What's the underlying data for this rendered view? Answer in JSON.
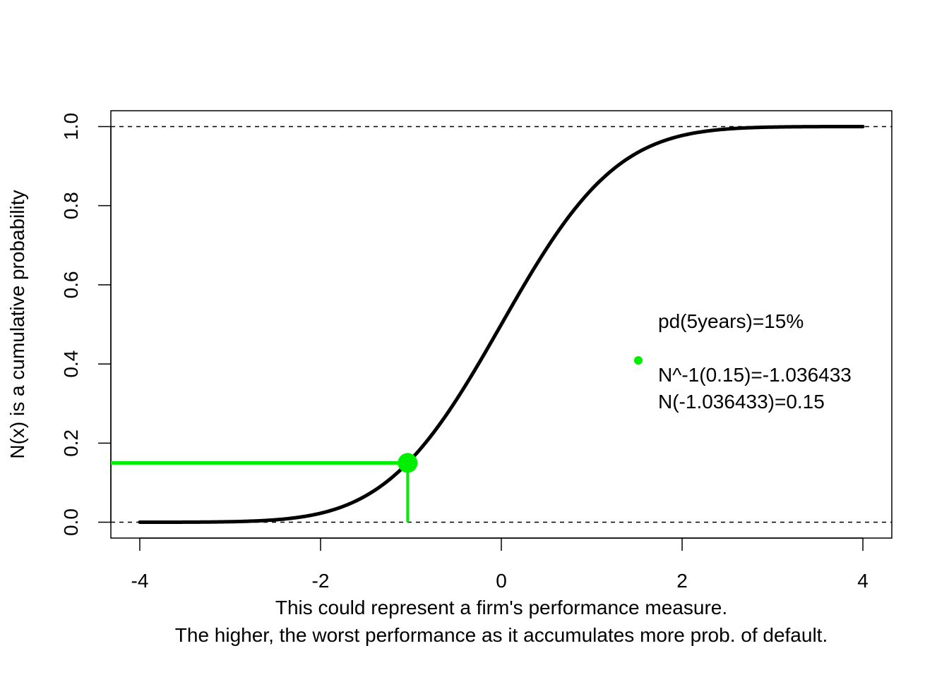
{
  "chart_data": {
    "type": "line",
    "title": "",
    "xlabel_lines": [
      "This could represent a firm's performance measure.",
      "The higher, the worst performance as it accumulates more prob. of default."
    ],
    "ylabel": "N(x) is a cumulative probability",
    "xlim": [
      -4.32,
      4.32
    ],
    "ylim": [
      -0.04,
      1.04
    ],
    "x_ticks": [
      -4,
      -2,
      0,
      2,
      4
    ],
    "x_tick_labels": [
      "-4",
      "-2",
      "0",
      "2",
      "4"
    ],
    "y_ticks": [
      0,
      0.2,
      0.4,
      0.6,
      0.8,
      1
    ],
    "y_tick_labels": [
      "0.0",
      "0.2",
      "0.4",
      "0.6",
      "0.8",
      "1.0"
    ],
    "series": [
      {
        "name": "N(x)",
        "function": "standard normal CDF",
        "x_range": [
          -4,
          4
        ],
        "color": "#000000"
      }
    ],
    "reference_lines": [
      {
        "y": 0,
        "style": "dashed",
        "color": "#000000"
      },
      {
        "y": 1,
        "style": "dashed",
        "color": "#000000"
      }
    ],
    "highlight": {
      "x": -1.036433,
      "y": 0.15,
      "color": "#00ee00"
    },
    "legend": {
      "position": "right-middle",
      "marker_color": "#00ee00",
      "lines": [
        "pd(5years)=15%",
        "",
        "N^-1(0.15)=-1.036433",
        "N(-1.036433)=0.15"
      ]
    }
  }
}
